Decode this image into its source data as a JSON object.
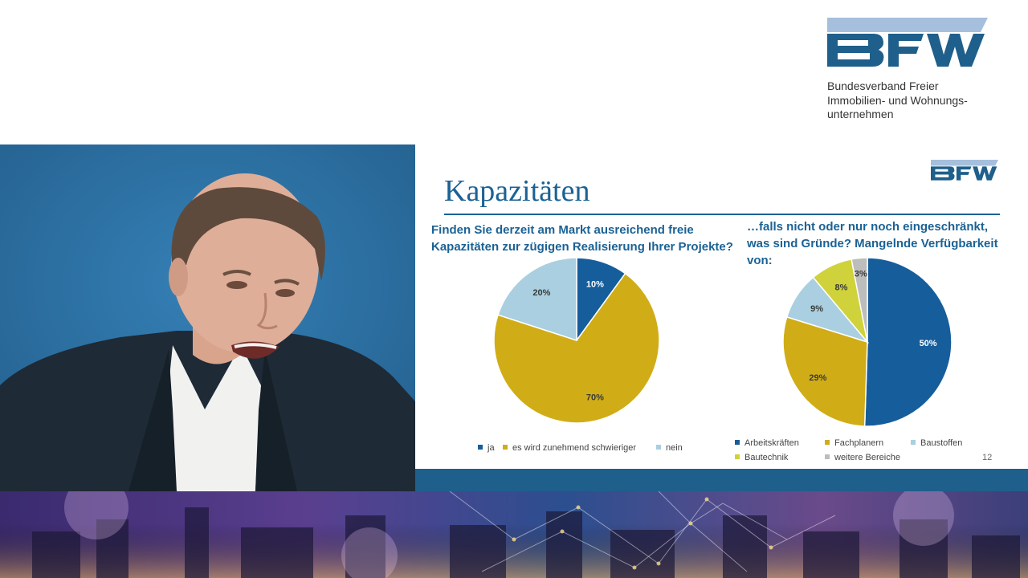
{
  "header": {
    "org_lines": [
      "Bundesverband Freier",
      "Immobilien- und Wohnungs-",
      "unternehmen"
    ],
    "logo_text": "BFW"
  },
  "colors": {
    "brand_blue": "#1b6295",
    "logo_light": "#a5bfdc",
    "ja": "#165d9c",
    "schwieriger": "#d0ad16",
    "nein": "#a9cfe0",
    "bautechnik": "#cfd23a",
    "weitere": "#bdbdbd"
  },
  "slide": {
    "title": "Kapazitäten",
    "page_number": "12",
    "question_left_lines": [
      "Finden Sie derzeit am Markt ausreichend freie",
      "Kapazitäten zur zügigen Realisierung Ihrer Projekte?"
    ],
    "question_right_lines": [
      "…falls nicht oder nur noch eingeschränkt,",
      "was sind Gründe? Mangelnde Verfügbarkeit",
      "von:"
    ]
  },
  "chart_data": [
    {
      "type": "pie",
      "categories": [
        "ja",
        "es wird zunehmend schwieriger",
        "nein"
      ],
      "values": [
        10,
        70,
        20
      ],
      "unit": "%",
      "data_labels": [
        "10%",
        "70%",
        "20%"
      ],
      "colors": [
        "#165d9c",
        "#d0ad16",
        "#a9cfe0"
      ],
      "legend_position": "bottom"
    },
    {
      "type": "pie",
      "categories": [
        "Arbeitskräften",
        "Fachplanern",
        "Baustoffen",
        "Bautechnik",
        "weitere Bereiche"
      ],
      "values": [
        50,
        29,
        9,
        8,
        3
      ],
      "unit": "%",
      "data_labels": [
        "50%",
        "29%",
        "9%",
        "8%",
        "3%"
      ],
      "colors": [
        "#165d9c",
        "#d0ad16",
        "#a9cfe0",
        "#cfd23a",
        "#bdbdbd"
      ],
      "legend_position": "bottom"
    }
  ]
}
